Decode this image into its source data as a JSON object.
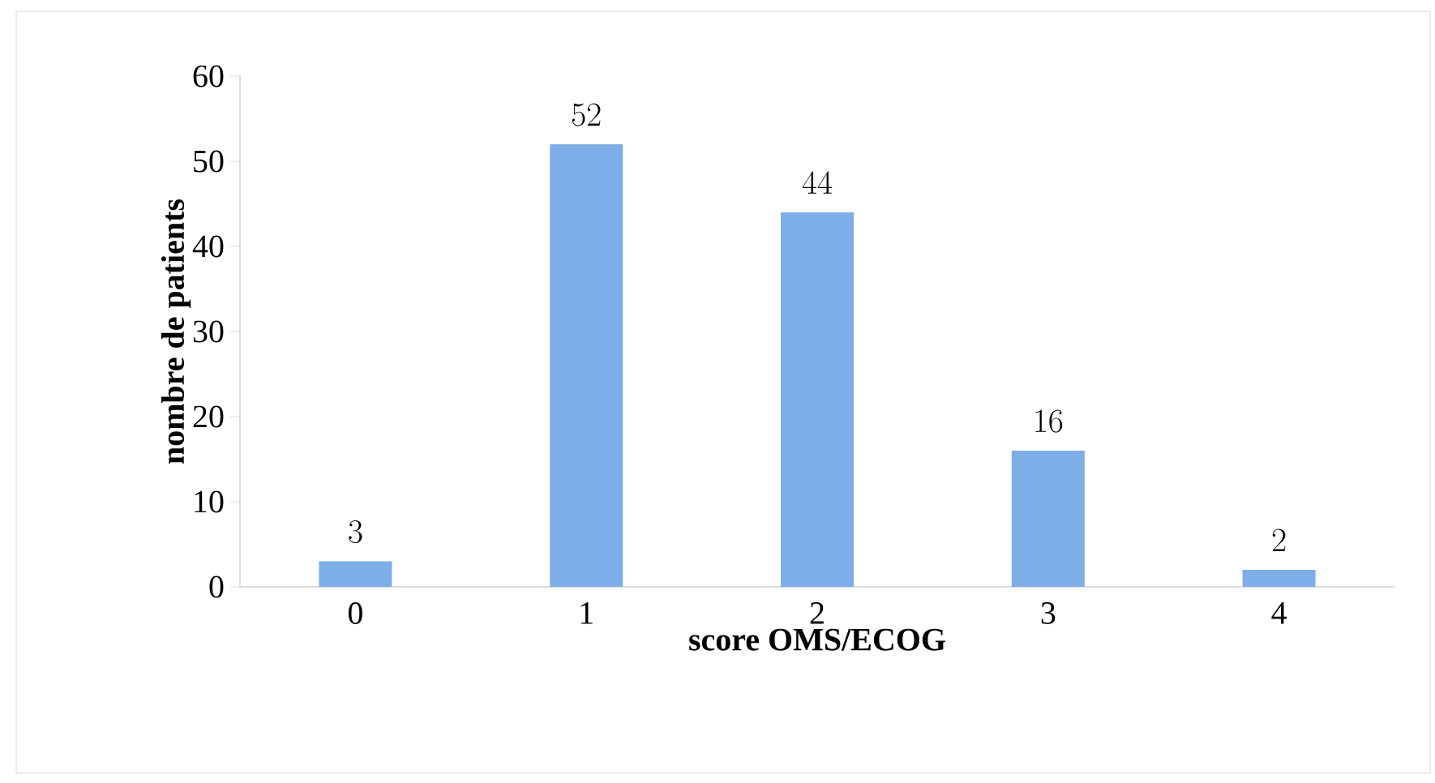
{
  "chart_data": {
    "type": "bar",
    "xlabel": "score OMS/ECOG",
    "ylabel": "nombre de patients",
    "categories": [
      "0",
      "1",
      "2",
      "3",
      "4"
    ],
    "values": [
      3,
      52,
      44,
      16,
      2
    ],
    "color": "#7eaee8",
    "ylim": [
      0,
      60
    ],
    "yticks": [
      0,
      10,
      20,
      30,
      40,
      50,
      60
    ],
    "data_labels": true
  }
}
